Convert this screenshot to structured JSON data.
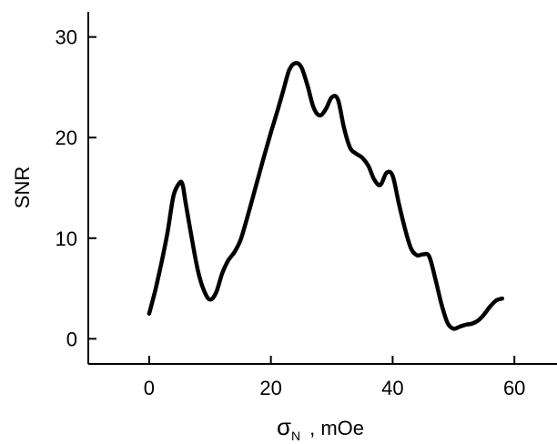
{
  "chart_data": {
    "type": "line",
    "title": "",
    "xlabel_symbol": "σ",
    "xlabel_subscript": "N",
    "xlabel_unit": ", mOe",
    "ylabel": "SNR",
    "xlim": [
      -10,
      67
    ],
    "ylim": [
      -2.5,
      32.5
    ],
    "xticks": [
      0,
      20,
      40,
      60
    ],
    "yticks": [
      0,
      10,
      20,
      30
    ],
    "xtick_labels": [
      "0",
      "20",
      "40",
      "60"
    ],
    "ytick_labels": [
      "0",
      "10",
      "20",
      "30"
    ],
    "grid": false,
    "line_color": "#000000",
    "series": [
      {
        "x": [
          0,
          1,
          2,
          3,
          4,
          5,
          5.5,
          6,
          7,
          8,
          9,
          10,
          11,
          12,
          13,
          14,
          15,
          16,
          17,
          18,
          19,
          20,
          21,
          22,
          23,
          24,
          25,
          26,
          27,
          28,
          29,
          30,
          31,
          32,
          33,
          34,
          35,
          36,
          37,
          38,
          39,
          40,
          41,
          42,
          43,
          44,
          45,
          46,
          47,
          48,
          49,
          50,
          51,
          52,
          53,
          54,
          55,
          56,
          57,
          58
        ],
        "y": [
          2.5,
          4.8,
          7.5,
          10.5,
          14.2,
          15.5,
          15.3,
          13.5,
          10,
          6.8,
          4.8,
          3.9,
          4.6,
          6.5,
          7.8,
          8.6,
          9.8,
          11.8,
          14,
          16.2,
          18.4,
          20.5,
          22.5,
          24.6,
          26.7,
          27.4,
          27,
          25.2,
          23,
          22.2,
          22.8,
          24,
          23.8,
          21,
          19,
          18.4,
          18,
          17.2,
          15.8,
          15.3,
          16.5,
          16.2,
          13.5,
          11,
          9,
          8.3,
          8.4,
          8.2,
          6,
          3.5,
          1.6,
          1,
          1.2,
          1.4,
          1.5,
          1.8,
          2.4,
          3.2,
          3.8,
          4
        ]
      }
    ]
  }
}
